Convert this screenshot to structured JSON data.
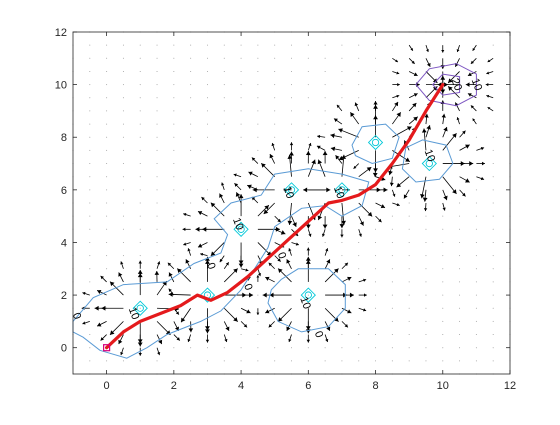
{
  "chart_data": {
    "type": "contour",
    "title": "",
    "xlabel": "",
    "ylabel": "",
    "xlim": [
      -1,
      12
    ],
    "ylim": [
      -1,
      12
    ],
    "xticks": [
      0,
      2,
      4,
      6,
      8,
      10,
      12
    ],
    "yticks": [
      0,
      2,
      4,
      6,
      8,
      10,
      12
    ],
    "grid": false,
    "colors": {
      "path": "#e41a1c",
      "contour_low": "#5b9bd5",
      "contour_mid": "#00c8d8",
      "contour_high": "#7e57c2",
      "arrows": "#000000",
      "start_marker": "#d6007e",
      "axis": "#262626"
    },
    "start_point": [
      0,
      0
    ],
    "goal_point": [
      10,
      10
    ],
    "obstacles": [
      {
        "x": 1.0,
        "y": 1.5
      },
      {
        "x": 3.0,
        "y": 2.0
      },
      {
        "x": 4.0,
        "y": 4.5
      },
      {
        "x": 5.5,
        "y": 6.0
      },
      {
        "x": 7.0,
        "y": 6.0
      },
      {
        "x": 6.0,
        "y": 2.0
      },
      {
        "x": 8.0,
        "y": 7.8
      },
      {
        "x": 9.6,
        "y": 7.0
      }
    ],
    "contour_labels": [
      {
        "text": "0",
        "x": -0.9,
        "y": 1.2
      },
      {
        "text": "10",
        "x": 0.8,
        "y": 1.3
      },
      {
        "text": "0",
        "x": 3.1,
        "y": 3.1
      },
      {
        "text": "10",
        "x": 3.9,
        "y": 4.7
      },
      {
        "text": "0",
        "x": 5.2,
        "y": 3.5
      },
      {
        "text": "0",
        "x": 4.2,
        "y": 2.3
      },
      {
        "text": "10",
        "x": 5.4,
        "y": 5.9
      },
      {
        "text": "10",
        "x": 6.9,
        "y": 5.9
      },
      {
        "text": "10",
        "x": 5.9,
        "y": 1.7
      },
      {
        "text": "0",
        "x": 6.3,
        "y": 0.5
      },
      {
        "text": "10",
        "x": 9.6,
        "y": 7.3
      },
      {
        "text": "20",
        "x": 10.4,
        "y": 10.0
      },
      {
        "text": "10",
        "x": 11.0,
        "y": 10.0
      }
    ],
    "path": [
      [
        0.0,
        0.0
      ],
      [
        0.5,
        0.6
      ],
      [
        1.0,
        1.0
      ],
      [
        1.6,
        1.3
      ],
      [
        2.2,
        1.6
      ],
      [
        2.7,
        2.0
      ],
      [
        3.1,
        1.8
      ],
      [
        3.6,
        2.1
      ],
      [
        4.2,
        2.7
      ],
      [
        4.8,
        3.4
      ],
      [
        5.4,
        4.1
      ],
      [
        6.0,
        4.8
      ],
      [
        6.6,
        5.5
      ],
      [
        7.0,
        5.6
      ],
      [
        7.5,
        5.8
      ],
      [
        8.0,
        6.2
      ],
      [
        8.5,
        7.0
      ],
      [
        9.0,
        7.9
      ],
      [
        9.5,
        9.0
      ],
      [
        10.0,
        10.0
      ]
    ]
  }
}
